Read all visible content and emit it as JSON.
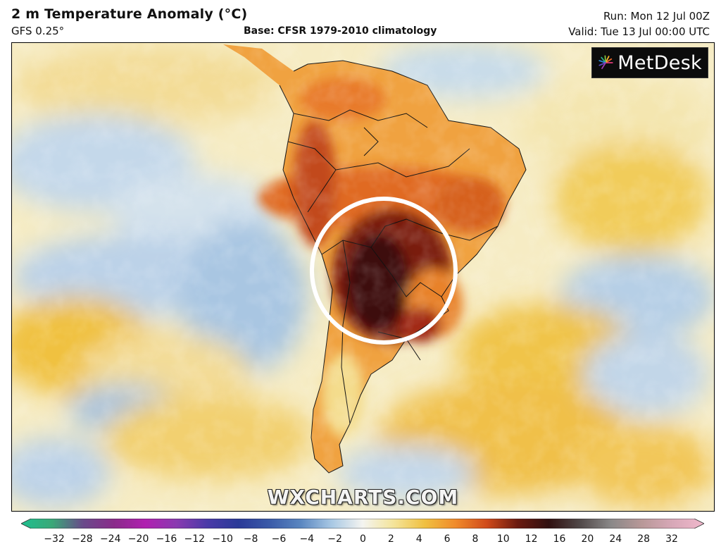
{
  "header": {
    "title": "2 m Temperature Anomaly (°C)",
    "model": "GFS 0.25°",
    "base": "Base: CFSR 1979-2010 climatology",
    "run": "Run: Mon 12 Jul 00Z",
    "valid": "Valid: Tue 13 Jul 00:00 UTC"
  },
  "logo": {
    "text": "MetDesk",
    "icon": "metdesk-sunburst-icon"
  },
  "watermark": "WXCHARTS.COM",
  "colorbar": {
    "ticks": [
      "−32",
      "−28",
      "−24",
      "−20",
      "−16",
      "−12",
      "−10",
      "−8",
      "−6",
      "−4",
      "−2",
      "0",
      "2",
      "4",
      "6",
      "8",
      "10",
      "12",
      "16",
      "20",
      "24",
      "28",
      "32"
    ],
    "colors": [
      "#1fbf8f",
      "#3aa878",
      "#6a4a8a",
      "#8a2a8a",
      "#b020b0",
      "#8a3ab0",
      "#4a3aa8",
      "#2a3a98",
      "#3a5aa8",
      "#5a86c0",
      "#a8c8e4",
      "#f4f4f0",
      "#f4e49a",
      "#f0c040",
      "#f08a2a",
      "#d04a1a",
      "#6a1a10",
      "#301010",
      "#504848",
      "#8a8888",
      "#b89898",
      "#d8a8b8",
      "#f0b8cc"
    ]
  },
  "map": {
    "region": "South America",
    "highlight": "white circle around central South America"
  }
}
